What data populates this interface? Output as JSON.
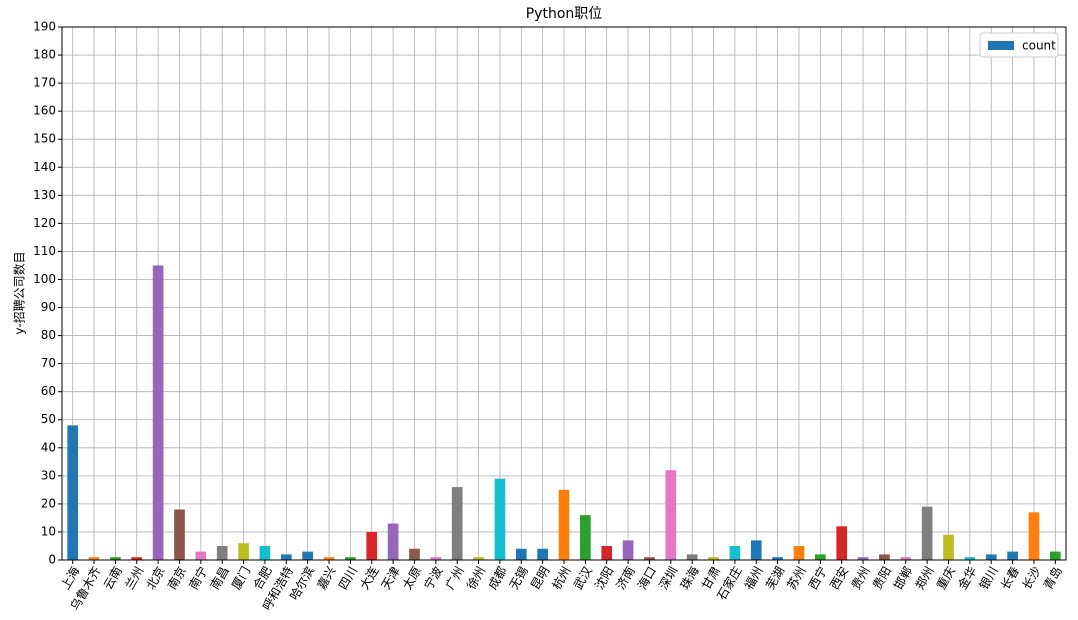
{
  "chart_data": {
    "type": "bar",
    "title": "Python职位",
    "ylabel": "y-招聘公司数目",
    "categories": [
      "上海",
      "乌鲁木齐",
      "云南",
      "兰州",
      "北京",
      "南京",
      "南宁",
      "南昌",
      "厦门",
      "合肥",
      "呼和浩特",
      "哈尔滨",
      "嘉兴",
      "四川",
      "大连",
      "天津",
      "太原",
      "宁波",
      "广州",
      "徐州",
      "成都",
      "无锡",
      "昆明",
      "杭州",
      "武汉",
      "沈阳",
      "济南",
      "海口",
      "深圳",
      "珠海",
      "甘肃",
      "石家庄",
      "福州",
      "芜湖",
      "苏州",
      "西宁",
      "西安",
      "贵州",
      "贵阳",
      "邯郸",
      "郑州",
      "重庆",
      "金华",
      "银川",
      "长春",
      "长沙",
      "青岛"
    ],
    "series": [
      {
        "name": "count",
        "color": "#1f77b4",
        "values": [
          48,
          1,
          1,
          1,
          105,
          18,
          3,
          5,
          6,
          5,
          2,
          3,
          1,
          1,
          10,
          13,
          4,
          1,
          26,
          1,
          29,
          4,
          4,
          25,
          16,
          5,
          7,
          1,
          32,
          2,
          1,
          5,
          7,
          1,
          5,
          2,
          12,
          1,
          2,
          1,
          19,
          9,
          1,
          2,
          3,
          17,
          3
        ]
      }
    ],
    "colors": [
      "#1f77b4",
      "#ff7f0e",
      "#2ca02c",
      "#d62728",
      "#9467bd",
      "#8c564b",
      "#e377c2",
      "#7f7f7f",
      "#bcbd22",
      "#17becf",
      "#1f77b4"
    ],
    "ylim": [
      0,
      190
    ],
    "yticks": [
      0,
      10,
      20,
      30,
      40,
      50,
      60,
      70,
      80,
      90,
      100,
      110,
      120,
      130,
      140,
      150,
      160,
      170,
      180,
      190
    ],
    "grid": true,
    "legend": "upper right"
  }
}
